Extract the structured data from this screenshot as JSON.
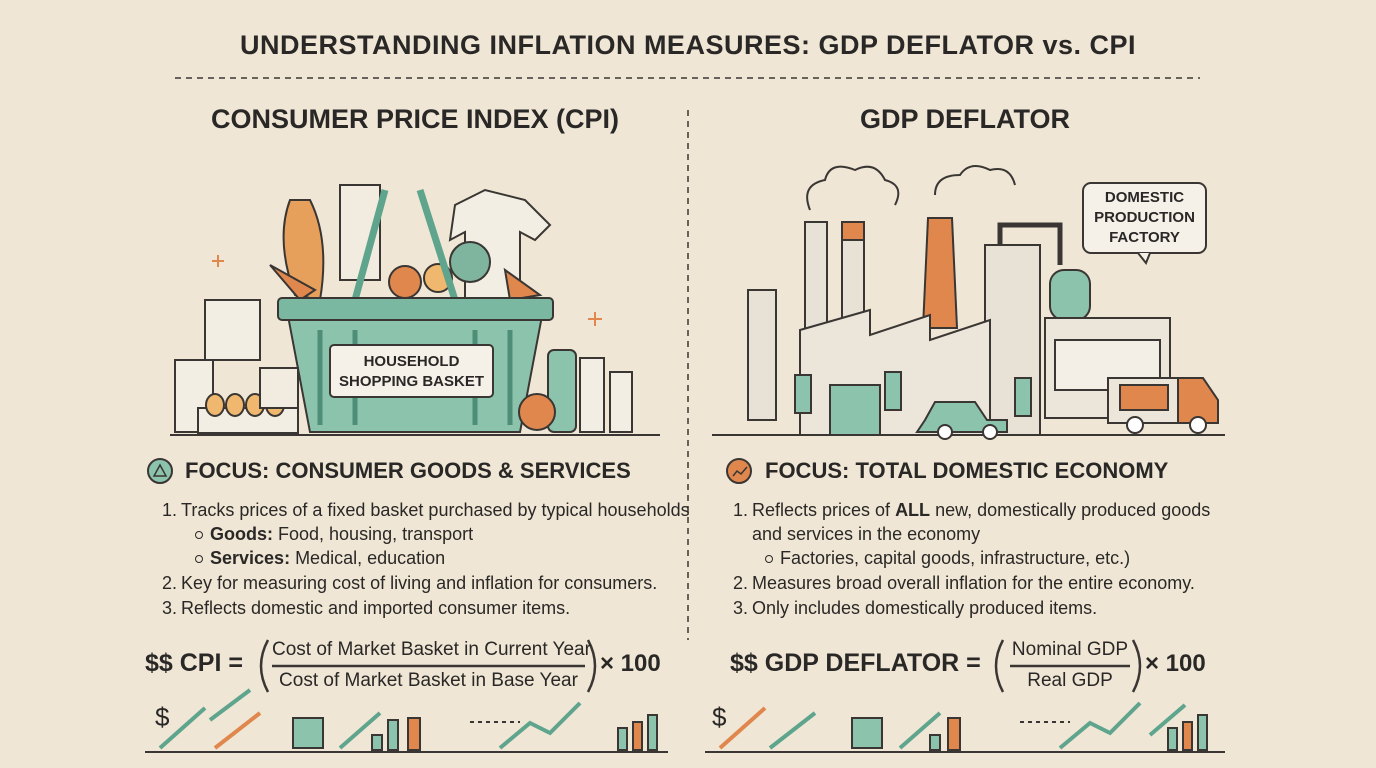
{
  "header": {
    "title": "UNDERSTANDING INFLATION MEASURES: GDP DEFLATOR vs. CPI"
  },
  "left": {
    "heading": "CONSUMER PRICE INDEX (CPI)",
    "illustration_label": [
      "HOUSEHOLD",
      "SHOPPING BASKET"
    ],
    "focus": "FOCUS: CONSUMER GOODS & SERVICES",
    "points": [
      {
        "number": "1.",
        "text": "Tracks prices of a fixed basket purchased by typical households",
        "subpoints": [
          {
            "label": "Goods:",
            "text": " Food, housing, transport"
          },
          {
            "label": "Services:",
            "text": " Medical, education"
          }
        ]
      },
      {
        "number": "2.",
        "text": "Key for measuring cost of living and inflation for consumers."
      },
      {
        "number": "3.",
        "text": "Reflects domestic and imported consumer items."
      }
    ],
    "formula": {
      "lhs": "$$ CPI =",
      "numerator": "Cost of Market Basket in Current Year",
      "denominator": "Cost of Market Basket in Base Year",
      "multiplier": "× 100"
    },
    "icon_symbol": "$"
  },
  "right": {
    "heading": "GDP DEFLATOR",
    "illustration_label": [
      "DOMESTIC",
      "PRODUCTION",
      "FACTORY"
    ],
    "focus": "FOCUS: TOTAL DOMESTIC ECONOMY",
    "points": [
      {
        "number": "1.",
        "text_before": "Reflects prices of ",
        "emphasis": "ALL",
        "text_after": " new, domestically produced goods",
        "continuation": "and services in the economy",
        "subpoints": [
          {
            "text": "Factories, capital goods, infrastructure, etc.)"
          }
        ]
      },
      {
        "number": "2.",
        "text": "Measures broad overall inflation for the entire economy."
      },
      {
        "number": "3.",
        "text": "Only includes domestically produced items."
      }
    ],
    "formula": {
      "lhs": "$$ GDP DEFLATOR =",
      "numerator": "Nominal GDP",
      "denominator": "Real GDP",
      "multiplier": "× 100"
    },
    "icon_symbol": "$"
  }
}
